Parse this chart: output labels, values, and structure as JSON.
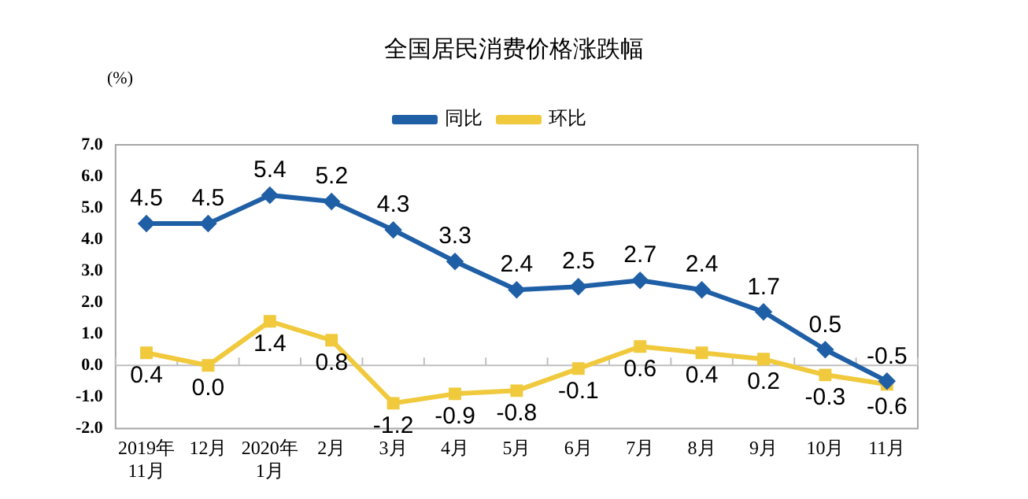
{
  "chart_data": {
    "type": "line",
    "title": "全国居民消费价格涨跌幅",
    "ylabel": "(%)",
    "categories": [
      "2019年\n11月",
      "12月",
      "2020年\n1月",
      "2月",
      "3月",
      "4月",
      "5月",
      "6月",
      "7月",
      "8月",
      "9月",
      "10月",
      "11月"
    ],
    "series": [
      {
        "name": "同比",
        "color": "#1f5fa6",
        "marker": "diamond",
        "values": [
          4.5,
          4.5,
          5.4,
          5.2,
          4.3,
          3.3,
          2.4,
          2.5,
          2.7,
          2.4,
          1.7,
          0.5,
          -0.5
        ],
        "value_labels": [
          "4.5",
          "4.5",
          "5.4",
          "5.2",
          "4.3",
          "3.3",
          "2.4",
          "2.5",
          "2.7",
          "2.4",
          "1.7",
          "0.5",
          "-0.5"
        ]
      },
      {
        "name": "环比",
        "color": "#f0c93c",
        "marker": "square",
        "values": [
          0.4,
          0.0,
          1.4,
          0.8,
          -1.2,
          -0.9,
          -0.8,
          -0.1,
          0.6,
          0.4,
          0.2,
          -0.3,
          -0.6
        ],
        "value_labels": [
          "0.4",
          "0.0",
          "1.4",
          "0.8",
          "-1.2",
          "-0.9",
          "-0.8",
          "-0.1",
          "0.6",
          "0.4",
          "0.2",
          "-0.3",
          "-0.6"
        ]
      }
    ],
    "ylim": [
      -2,
      7
    ],
    "yticks": [
      {
        "value": -2,
        "label": "-2.0"
      },
      {
        "value": -1,
        "label": "-1.0"
      },
      {
        "value": 0,
        "label": "0.0"
      },
      {
        "value": 1,
        "label": "1.0"
      },
      {
        "value": 2,
        "label": "2.0"
      },
      {
        "value": 3,
        "label": "3.0"
      },
      {
        "value": 4,
        "label": "4.0"
      },
      {
        "value": 5,
        "label": "5.0"
      },
      {
        "value": 6,
        "label": "6.0"
      },
      {
        "value": 7,
        "label": "7.0"
      }
    ],
    "ref_lines": [
      {
        "axis": "y",
        "value": 0,
        "color": "#bfbfbf"
      }
    ],
    "grid": false,
    "legend": "top",
    "line_style": "solid"
  }
}
